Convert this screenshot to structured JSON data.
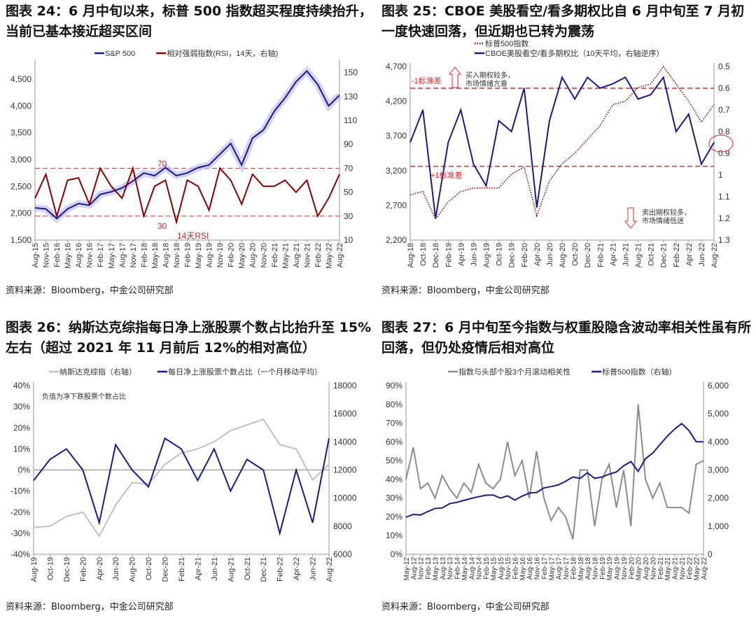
{
  "titles": [
    "图表 24：6 月中旬以来，标普 500 指数超买程度持续抬升，当前已基本接近超买区间",
    "图表 25：CBOE 美股看空/看多期权比自 6 月中旬至 7 月初一度快速回落，但近期也已转为震荡",
    "图表 26：纳斯达克综指每日净上涨股票个数占比抬升至 15%左右（超过 2021 年 11 月前后 12%的相对高位）",
    "图表 27：6 月中旬至今指数与权重股隐含波动率相关性虽有所回落，但仍处疫情后相对高位"
  ],
  "source": "资料来源：Bloomberg，中金公司研究部",
  "colors": {
    "navy": "#1a1a8c",
    "darkred": "#8b0000",
    "gray": "#8c8c8c",
    "lightgray": "#c0c0c0",
    "red": "#e8262a",
    "band": "#b8b8f0"
  },
  "chart_data": [
    {
      "type": "line",
      "legend": [
        "S&P 500",
        "相对强弱指数(RSI，14天，右轴)"
      ],
      "legend_placement": "top",
      "categories": [
        "Aug-15",
        "Nov-15",
        "Feb-16",
        "May-16",
        "Aug-16",
        "Nov-16",
        "Feb-17",
        "May-17",
        "Aug-17",
        "Nov-17",
        "Feb-18",
        "May-18",
        "Aug-18",
        "Nov-18",
        "Feb-19",
        "May-19",
        "Aug-19",
        "Nov-19",
        "Feb-20",
        "May-20",
        "Aug-20",
        "Nov-20",
        "Feb-21",
        "May-21",
        "Aug-21",
        "Nov-21",
        "Feb-22",
        "May-22",
        "Aug-22"
      ],
      "left_axis": {
        "ticks": [
          "1,500",
          "2,000",
          "2,500",
          "3,000",
          "3,500",
          "4,000",
          "4,500"
        ],
        "range": [
          1500,
          4800
        ]
      },
      "right_axis": {
        "ticks": [
          "10",
          "30",
          "50",
          "70",
          "90",
          "110",
          "130",
          "150"
        ],
        "range": [
          10,
          158
        ]
      },
      "series": [
        {
          "name": "S&P 500",
          "axis": "left",
          "color": "#1a1a8c",
          "values": [
            2100,
            2080,
            1900,
            2080,
            2180,
            2150,
            2350,
            2400,
            2470,
            2600,
            2750,
            2700,
            2850,
            2700,
            2750,
            2850,
            2900,
            3100,
            3300,
            2900,
            3400,
            3550,
            3900,
            4150,
            4450,
            4650,
            4400,
            4000,
            4200
          ]
        },
        {
          "name": "相对强弱指数(RSI，14天，右轴)",
          "axis": "right",
          "color": "#8b0000",
          "values": [
            45,
            65,
            30,
            60,
            62,
            40,
            70,
            55,
            45,
            70,
            30,
            55,
            60,
            25,
            60,
            55,
            35,
            70,
            60,
            40,
            65,
            55,
            55,
            60,
            50,
            60,
            30,
            45,
            65
          ]
        }
      ],
      "reference_lines": [
        {
          "axis": "right",
          "value": 70,
          "label": "70"
        },
        {
          "axis": "right",
          "value": 30,
          "label": "30"
        }
      ],
      "annotations": [
        "14天RSI"
      ]
    },
    {
      "type": "line",
      "legend": [
        "标普500指数",
        "CBOE美股看空/看多期权比（10天平均，右轴逆序）"
      ],
      "legend_placement": "top",
      "categories": [
        "Aug-18",
        "Oct-18",
        "Dec-18",
        "Feb-19",
        "Apr-19",
        "Jun-19",
        "Aug-19",
        "Oct-19",
        "Dec-19",
        "Feb-20",
        "Apr-20",
        "Jun-20",
        "Aug-20",
        "Oct-20",
        "Dec-20",
        "Feb-21",
        "Apr-21",
        "Jun-21",
        "Aug-21",
        "Oct-21",
        "Dec-21",
        "Feb-22",
        "Apr-22",
        "Jun-22",
        "Aug-22"
      ],
      "left_axis": {
        "ticks": [
          "2,200",
          "2,700",
          "3,200",
          "3,700",
          "4,200",
          "4,700"
        ],
        "range": [
          2200,
          4700
        ]
      },
      "right_axis": {
        "ticks": [
          "0.5",
          "0.6",
          "0.7",
          "0.8",
          "0.9",
          "1",
          "1.1",
          "1.2",
          "1.3"
        ],
        "range": [
          0.5,
          1.3
        ],
        "reversed": true
      },
      "series": [
        {
          "name": "标普500指数",
          "axis": "left",
          "color": "#8b0000",
          "style": "dotted",
          "values": [
            2850,
            2900,
            2500,
            2750,
            2900,
            2950,
            2950,
            2950,
            3150,
            3250,
            2550,
            3050,
            3300,
            3450,
            3650,
            3850,
            4150,
            4200,
            4400,
            4450,
            4700,
            4450,
            4200,
            3900,
            4150
          ]
        },
        {
          "name": "CBOE美股看空/看多期权比（10天平均，右轴逆序）",
          "axis": "right",
          "color": "#1a1a8c",
          "values": [
            0.85,
            0.7,
            1.2,
            0.85,
            0.7,
            0.95,
            1.05,
            0.75,
            0.8,
            0.6,
            1.15,
            0.75,
            0.55,
            0.65,
            0.55,
            0.6,
            0.58,
            0.55,
            0.65,
            0.63,
            0.55,
            0.8,
            0.72,
            0.95,
            0.85
          ]
        }
      ],
      "reference_lines": [
        {
          "axis": "right",
          "value": 0.6,
          "label": "-1标准差"
        },
        {
          "axis": "right",
          "value": 0.96,
          "label": "+1标准差"
        }
      ],
      "annotations": [
        "买入期权较多，",
        "市场情绪亢奋",
        "卖出期权较多，",
        "市场情绪低迷"
      ]
    },
    {
      "type": "line",
      "legend": [
        "每日净上涨股票个数占比（一个月移动平均）",
        "纳斯达克综指（右轴）"
      ],
      "legend_placement": "top",
      "categories": [
        "Aug-19",
        "Oct-19",
        "Dec-19",
        "Feb-20",
        "Apr-20",
        "Jun-20",
        "Aug-20",
        "Oct-20",
        "Dec-20",
        "Feb-21",
        "Apr-21",
        "Jun-21",
        "Aug-21",
        "Oct-21",
        "Dec-21",
        "Feb-22",
        "Apr-22",
        "Jun-22",
        "Aug-22"
      ],
      "left_axis": {
        "ticks": [
          "-40%",
          "-30%",
          "-20%",
          "-10%",
          "0%",
          "10%",
          "20%",
          "30%",
          "40%"
        ],
        "range": [
          -40,
          40
        ]
      },
      "right_axis": {
        "ticks": [
          "6000",
          "8000",
          "10000",
          "12000",
          "14000",
          "16000",
          "18000"
        ],
        "range": [
          6000,
          18000
        ]
      },
      "series": [
        {
          "name": "纳斯达克综指（右轴）",
          "axis": "right",
          "color": "#c0c0c0",
          "values": [
            7900,
            8000,
            8700,
            9000,
            7300,
            9500,
            11100,
            11000,
            12400,
            13200,
            13500,
            14000,
            14800,
            15200,
            15600,
            13800,
            13500,
            11300,
            12400
          ]
        },
        {
          "name": "每日净上涨股票个数占比（一个月移动平均）",
          "axis": "left",
          "color": "#1a1a8c",
          "values": [
            -5,
            5,
            10,
            0,
            -25,
            12,
            0,
            -8,
            15,
            10,
            -5,
            10,
            -10,
            5,
            0,
            -30,
            0,
            -25,
            15
          ]
        }
      ],
      "reference_lines": [
        {
          "axis": "left",
          "value": 0,
          "label": ""
        }
      ],
      "annotations": [
        "负值为净下跌股票个数占比"
      ]
    },
    {
      "type": "line",
      "legend": [
        "指数与头部个股3个月滚动相关性",
        "标普500指数（右轴）"
      ],
      "legend_placement": "top",
      "categories": [
        "May-12",
        "Aug-12",
        "Nov-12",
        "Feb-13",
        "May-13",
        "Aug-13",
        "Nov-13",
        "Feb-14",
        "May-14",
        "Aug-14",
        "Nov-14",
        "Feb-15",
        "May-15",
        "Aug-15",
        "Nov-15",
        "Feb-16",
        "May-16",
        "Aug-16",
        "Nov-16",
        "Feb-17",
        "May-17",
        "Aug-17",
        "Nov-17",
        "Feb-18",
        "May-18",
        "Aug-18",
        "Nov-18",
        "Feb-19",
        "May-19",
        "Aug-19",
        "Nov-19",
        "Feb-20",
        "May-20",
        "Aug-20",
        "Nov-20",
        "Feb-21",
        "May-21",
        "Aug-21",
        "Nov-21",
        "Feb-22",
        "May-22",
        "Aug-22"
      ],
      "left_axis": {
        "ticks": [
          "0%",
          "10%",
          "20%",
          "30%",
          "40%",
          "50%",
          "60%",
          "70%",
          "80%",
          "90%"
        ],
        "range": [
          0,
          90
        ]
      },
      "right_axis": {
        "ticks": [
          "0",
          "1,000",
          "2,000",
          "3,000",
          "4,000",
          "5,000",
          "6,000"
        ],
        "range": [
          0,
          6000
        ]
      },
      "series": [
        {
          "name": "指数与头部个股3个月滚动相关性",
          "axis": "left",
          "color": "#8c8c8c",
          "values": [
            40,
            57,
            35,
            38,
            30,
            42,
            35,
            30,
            38,
            33,
            48,
            38,
            35,
            40,
            60,
            42,
            50,
            30,
            55,
            30,
            18,
            25,
            20,
            8,
            45,
            45,
            15,
            40,
            48,
            25,
            45,
            15,
            80,
            40,
            30,
            38,
            25,
            25,
            25,
            22,
            48,
            50
          ]
        },
        {
          "name": "标普500指数（右轴）",
          "axis": "right",
          "color": "#1a1a8c",
          "values": [
            1320,
            1420,
            1400,
            1520,
            1630,
            1650,
            1800,
            1850,
            1920,
            1990,
            2050,
            2100,
            2110,
            2000,
            2080,
            1930,
            2070,
            2180,
            2200,
            2360,
            2410,
            2470,
            2600,
            2750,
            2700,
            2900,
            2700,
            2750,
            2850,
            2930,
            3150,
            3300,
            2950,
            3400,
            3600,
            3900,
            4200,
            4450,
            4650,
            4400,
            4000,
            4000
          ]
        }
      ],
      "reference_lines": [],
      "annotations": []
    }
  ]
}
